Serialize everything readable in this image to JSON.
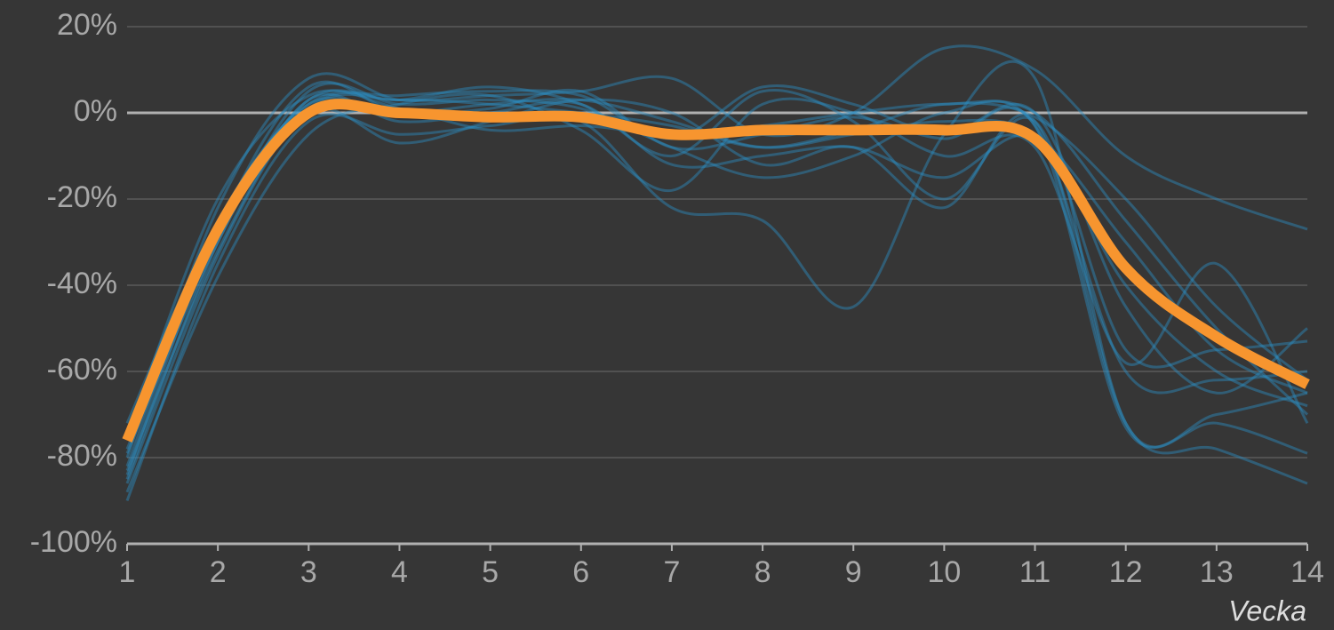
{
  "chart_data": {
    "type": "line",
    "x_label": "Vecka",
    "x": [
      1,
      2,
      3,
      4,
      5,
      6,
      7,
      8,
      9,
      10,
      11,
      12,
      13,
      14
    ],
    "xlim": [
      1,
      14
    ],
    "xticks": [
      1,
      2,
      3,
      4,
      5,
      6,
      7,
      8,
      9,
      10,
      11,
      12,
      13,
      14
    ],
    "ylim": [
      -100,
      20
    ],
    "yticks": [
      {
        "value": -100,
        "label": "-100%"
      },
      {
        "value": -80,
        "label": "-80%"
      },
      {
        "value": -60,
        "label": "-60%"
      },
      {
        "value": -40,
        "label": "-40%"
      },
      {
        "value": -20,
        "label": "-20%"
      },
      {
        "value": 0,
        "label": "0%"
      },
      {
        "value": 20,
        "label": "20%"
      }
    ],
    "grid": true,
    "series": [
      {
        "color": "#2d8fc4",
        "values": [
          -72,
          -25,
          2,
          0,
          2,
          3,
          -2,
          -8,
          -5,
          -2,
          -5,
          -30,
          -55,
          -65
        ]
      },
      {
        "color": "#2d8fc4",
        "values": [
          -85,
          -30,
          5,
          2,
          3,
          1,
          -8,
          -15,
          -10,
          0,
          -3,
          -60,
          -62,
          -60
        ]
      },
      {
        "color": "#2d8fc4",
        "values": [
          -90,
          -35,
          -2,
          -5,
          -3,
          -2,
          -22,
          -25,
          -45,
          -5,
          8,
          -72,
          -70,
          -65
        ]
      },
      {
        "color": "#2d8fc4",
        "values": [
          -80,
          -22,
          8,
          3,
          4,
          5,
          8,
          -5,
          0,
          15,
          10,
          -10,
          -20,
          -27
        ]
      },
      {
        "color": "#2d8fc4",
        "values": [
          -78,
          -28,
          3,
          3,
          6,
          2,
          -10,
          5,
          -2,
          -20,
          -2,
          -55,
          -55,
          -53
        ]
      },
      {
        "color": "#2d8fc4",
        "values": [
          -83,
          -32,
          0,
          -7,
          -2,
          3,
          0,
          -12,
          -8,
          -22,
          -2,
          -72,
          -78,
          -86
        ]
      },
      {
        "color": "#2d8fc4",
        "values": [
          -75,
          -20,
          4,
          1,
          -4,
          -3,
          -5,
          -3,
          0,
          2,
          0,
          -25,
          -50,
          -70
        ]
      },
      {
        "color": "#2d8fc4",
        "values": [
          -88,
          -38,
          -5,
          2,
          4,
          -4,
          -18,
          2,
          0,
          -10,
          -8,
          -58,
          -35,
          -72
        ]
      },
      {
        "color": "#2d8fc4",
        "values": [
          -82,
          -26,
          2,
          4,
          5,
          4,
          -6,
          6,
          2,
          -5,
          0,
          -45,
          -65,
          -50
        ]
      },
      {
        "color": "#2d8fc4",
        "values": [
          -79,
          -30,
          3,
          -2,
          0,
          2,
          -12,
          -10,
          -8,
          -15,
          -6,
          -40,
          -60,
          -68
        ]
      },
      {
        "color": "#2d8fc4",
        "values": [
          -86,
          -33,
          1,
          3,
          2,
          0,
          -3,
          -8,
          -4,
          2,
          -1,
          -20,
          -45,
          -62
        ]
      },
      {
        "color": "#2d8fc4",
        "values": [
          -84,
          -27,
          6,
          0,
          1,
          5,
          -8,
          -5,
          -1,
          -6,
          -3,
          -73,
          -72,
          -79
        ]
      },
      {
        "color": "#f7952f",
        "values": [
          -76,
          -27,
          0,
          0,
          -1,
          -1,
          -5,
          -4,
          -4,
          -4,
          -6,
          -36,
          -52,
          -63
        ]
      }
    ]
  }
}
